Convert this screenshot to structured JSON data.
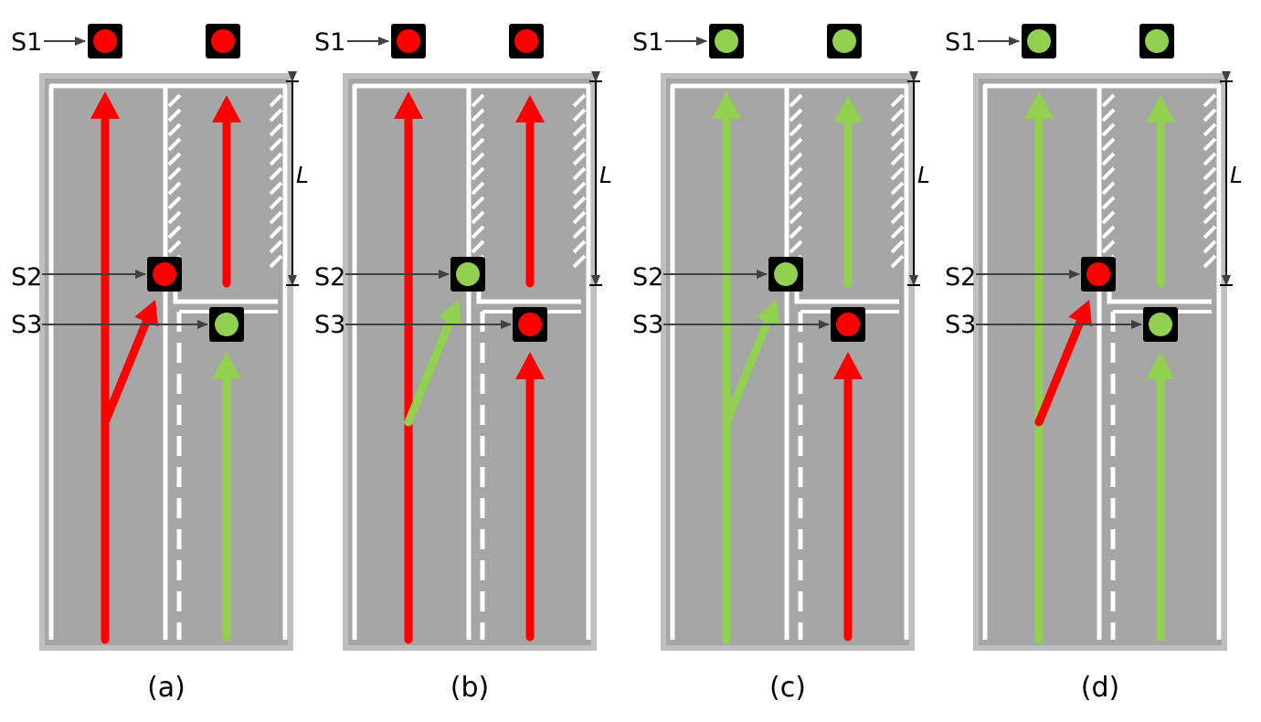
{
  "labels": {
    "s1": "S1",
    "s2": "S2",
    "s3": "S3",
    "length": "L"
  },
  "colors": {
    "road": "#a6a6a6",
    "edge": "#bfbfbf",
    "marking": "#ffffff",
    "red": "#ff0000",
    "green": "#92d050",
    "signal_housing": "#000000",
    "pointer": "#404040"
  },
  "panels": [
    {
      "caption": "(a)",
      "signals": {
        "s1": "red",
        "s2": "red",
        "s3": "green"
      },
      "arrows": {
        "main": "red",
        "turn": "red",
        "right_upper": "red",
        "right_lower": "green"
      }
    },
    {
      "caption": "(b)",
      "signals": {
        "s1": "red",
        "s2": "green",
        "s3": "red"
      },
      "arrows": {
        "main": "red",
        "turn": "green",
        "right_upper": "red",
        "right_lower": "red"
      }
    },
    {
      "caption": "(c)",
      "signals": {
        "s1": "green",
        "s2": "green",
        "s3": "red"
      },
      "arrows": {
        "main": "green",
        "turn": "green",
        "right_upper": "green",
        "right_lower": "red"
      }
    },
    {
      "caption": "(d)",
      "signals": {
        "s1": "green",
        "s2": "red",
        "s3": "green"
      },
      "arrows": {
        "main": "green",
        "turn": "red",
        "right_upper": "green",
        "right_lower": "green"
      }
    }
  ]
}
